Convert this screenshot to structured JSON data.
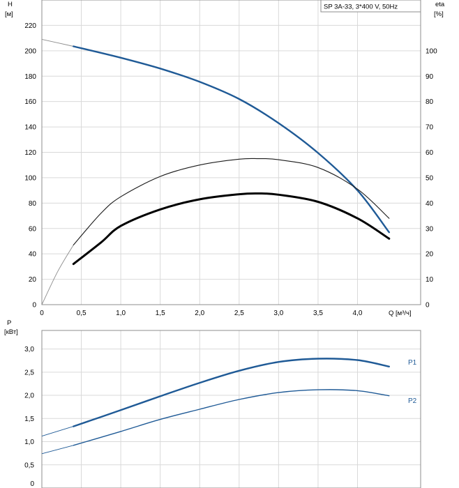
{
  "chart_data": [
    {
      "type": "line",
      "legend_box": "SP 3A-33, 3*400 V, 50Hz",
      "left_axis_label": [
        "H",
        "[м]"
      ],
      "right_axis_label": [
        "eta",
        "[%]"
      ],
      "x_axis_label": "Q [м³/ч]",
      "x_ticks": [
        "0",
        "0,5",
        "1,0",
        "1,5",
        "2,0",
        "2,5",
        "3,0",
        "3,5",
        "4,0"
      ],
      "y_ticks": [
        "0",
        "20",
        "40",
        "60",
        "80",
        "100",
        "120",
        "140",
        "160",
        "180",
        "200",
        "220"
      ],
      "y2_ticks": [
        "0",
        "10",
        "20",
        "30",
        "40",
        "50",
        "60",
        "70",
        "80",
        "90",
        "100"
      ],
      "xlim": [
        0,
        4.8
      ],
      "ylim": [
        0,
        240
      ],
      "y2lim": [
        0,
        120
      ],
      "grid": true,
      "series": [
        {
          "key": "H",
          "axis": "left",
          "color": "#1f5a96",
          "extrapolated": [
            [
              0,
              209
            ],
            [
              0.4,
              203.5
            ]
          ],
          "points": [
            [
              0.4,
              203.5
            ],
            [
              1.0,
              194.5
            ],
            [
              1.5,
              186
            ],
            [
              2.0,
              175.5
            ],
            [
              2.5,
              162
            ],
            [
              3.0,
              143
            ],
            [
              3.5,
              119.5
            ],
            [
              4.0,
              90
            ],
            [
              4.4,
              57
            ]
          ]
        },
        {
          "key": "eta_thin",
          "axis": "right",
          "color": "#1a1a1a",
          "extrapolated": [
            [
              0,
              0
            ],
            [
              0.2,
              13
            ],
            [
              0.4,
              23.5
            ]
          ],
          "points": [
            [
              0.4,
              23.5
            ],
            [
              0.75,
              36
            ],
            [
              1.0,
              42.5
            ],
            [
              1.5,
              50.5
            ],
            [
              2.0,
              55
            ],
            [
              2.5,
              57.3
            ],
            [
              2.75,
              57.5
            ],
            [
              3.0,
              57.1
            ],
            [
              3.5,
              54
            ],
            [
              4.0,
              45.5
            ],
            [
              4.4,
              34
            ]
          ]
        },
        {
          "key": "eta_thick",
          "axis": "right",
          "color": "#000000",
          "extrapolated": [],
          "points": [
            [
              0.4,
              16
            ],
            [
              0.75,
              24.5
            ],
            [
              1.0,
              31
            ],
            [
              1.5,
              37.5
            ],
            [
              2.0,
              41.5
            ],
            [
              2.5,
              43.5
            ],
            [
              2.75,
              43.8
            ],
            [
              3.0,
              43.3
            ],
            [
              3.5,
              40.5
            ],
            [
              4.0,
              34
            ],
            [
              4.4,
              26
            ]
          ]
        }
      ]
    },
    {
      "type": "line",
      "left_axis_label": [
        "P",
        "[кВт]"
      ],
      "y_ticks": [
        "0",
        "0,5",
        "1,0",
        "1,5",
        "2,0",
        "2,5",
        "3,0"
      ],
      "xlim": [
        0,
        4.8
      ],
      "ylim": [
        0,
        3.4
      ],
      "grid": true,
      "series": [
        {
          "name": "P1",
          "color": "#1f5a96",
          "extrapolated": [
            [
              0,
              1.12
            ],
            [
              0.4,
              1.33
            ]
          ],
          "points": [
            [
              0.4,
              1.33
            ],
            [
              1.0,
              1.68
            ],
            [
              1.5,
              1.98
            ],
            [
              2.0,
              2.27
            ],
            [
              2.5,
              2.53
            ],
            [
              3.0,
              2.72
            ],
            [
              3.5,
              2.79
            ],
            [
              4.0,
              2.76
            ],
            [
              4.4,
              2.62
            ]
          ]
        },
        {
          "name": "P2",
          "color": "#1f5a96",
          "extrapolated": [
            [
              0,
              0.74
            ],
            [
              0.4,
              0.92
            ]
          ],
          "points": [
            [
              0.4,
              0.92
            ],
            [
              1.0,
              1.22
            ],
            [
              1.5,
              1.48
            ],
            [
              2.0,
              1.7
            ],
            [
              2.5,
              1.91
            ],
            [
              3.0,
              2.06
            ],
            [
              3.5,
              2.12
            ],
            [
              4.0,
              2.1
            ],
            [
              4.4,
              1.99
            ]
          ]
        }
      ]
    }
  ]
}
